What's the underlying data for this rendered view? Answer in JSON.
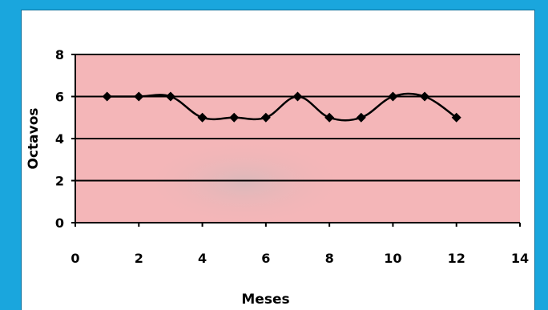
{
  "chart_data": {
    "type": "line",
    "title": "",
    "xlabel": "Meses",
    "ylabel": "Octavos",
    "xlim": [
      0,
      14
    ],
    "ylim": [
      0,
      8
    ],
    "x_ticks": [
      0,
      2,
      4,
      6,
      8,
      10,
      12,
      14
    ],
    "y_ticks": [
      0,
      2,
      4,
      6,
      8
    ],
    "grid": "horizontal",
    "legend": "none",
    "plot_background": "#f4b6b8",
    "line_color": "#000000",
    "marker": "diamond",
    "series": [
      {
        "x": [
          1,
          2,
          3,
          4,
          5,
          6,
          7,
          8,
          9,
          10,
          11,
          12
        ],
        "y": [
          6,
          6,
          6,
          5,
          5,
          5,
          6,
          5,
          5,
          6,
          6,
          5
        ]
      }
    ]
  }
}
